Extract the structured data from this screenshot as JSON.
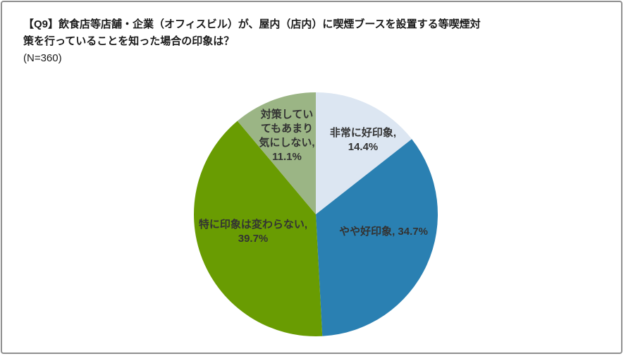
{
  "header": {
    "title_line1": "【Q9】飲食店等店舗・企業（オフィスビル）が、屋内（店内）に喫煙ブースを設置する等喫煙対",
    "title_line2": "策を行っていることを知った場合の印象は？",
    "sample_size": "(N=360)"
  },
  "chart_data": {
    "type": "pie",
    "title": "【Q9】飲食店等店舗・企業（オフィスビル）が、屋内（店内）に喫煙ブースを設置する等喫煙対策を行っていることを知った場合の印象は？",
    "sample_size": "(N=360)",
    "categories": [
      "非常に好印象",
      "やや好印象",
      "特に印象は変わらない",
      "対策していてもあまり気にしない"
    ],
    "values": [
      14.4,
      34.7,
      39.7,
      11.1
    ],
    "unit": "%",
    "colors": [
      "#dce6f2",
      "#2a80b2",
      "#699c02",
      "#9bb585"
    ],
    "start_angle_deg": 0,
    "direction": "clockwise",
    "legend": "none",
    "labels_display": [
      "非常に好印象,\n14.4%",
      "やや好印象, 34.7%",
      "特に印象は変わらない,\n39.7%",
      "対策してい\nてもあまり\n気にしない,\n11.1%"
    ]
  }
}
